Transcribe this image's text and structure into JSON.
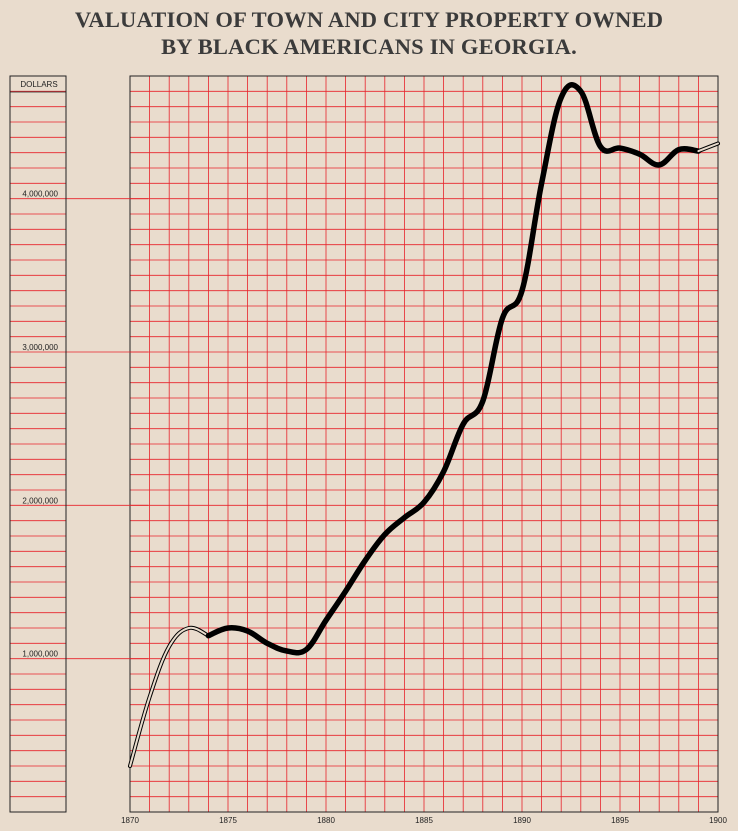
{
  "chart_data": {
    "type": "line",
    "title": [
      "VALUATION OF TOWN AND CITY PROPERTY OWNED",
      "BY BLACK AMERICANS IN GEORGIA."
    ],
    "ylabel": "DOLLARS",
    "xlim": [
      1870,
      1900
    ],
    "ylim": [
      0,
      4800000
    ],
    "x_ticks": [
      "1870",
      "1875",
      "1880",
      "1885",
      "1890",
      "1895",
      "1900"
    ],
    "y_ticks": [
      {
        "value": 1000000,
        "label": "1,000,000"
      },
      {
        "value": 2000000,
        "label": "2,000,000"
      },
      {
        "value": 3000000,
        "label": "3,000,000"
      },
      {
        "value": 4000000,
        "label": "4,000,000"
      }
    ],
    "grid": true,
    "colors": {
      "background": "#e9dccd",
      "grid": "#e8232b",
      "line": "#000000",
      "axis": "#222222"
    },
    "series": [
      {
        "style": "double-outline",
        "x": [
          1870,
          1871,
          1872,
          1873,
          1874
        ],
        "values": [
          300000,
          750000,
          1080000,
          1200000,
          1150000
        ]
      },
      {
        "style": "solid-thick",
        "x": [
          1874,
          1875,
          1876,
          1877,
          1878,
          1879,
          1880,
          1881,
          1882,
          1883,
          1884,
          1885,
          1886,
          1887,
          1888,
          1889,
          1890,
          1891,
          1892,
          1893,
          1894,
          1895,
          1896,
          1897,
          1898,
          1899
        ],
        "values": [
          1150000,
          1200000,
          1180000,
          1100000,
          1050000,
          1060000,
          1250000,
          1440000,
          1640000,
          1810000,
          1920000,
          2020000,
          2220000,
          2530000,
          2680000,
          3220000,
          3400000,
          4100000,
          4660000,
          4700000,
          4340000,
          4330000,
          4290000,
          4220000,
          4320000,
          4310000
        ]
      },
      {
        "style": "double-outline",
        "x": [
          1899,
          1900
        ],
        "values": [
          4310000,
          4360000
        ]
      }
    ]
  }
}
